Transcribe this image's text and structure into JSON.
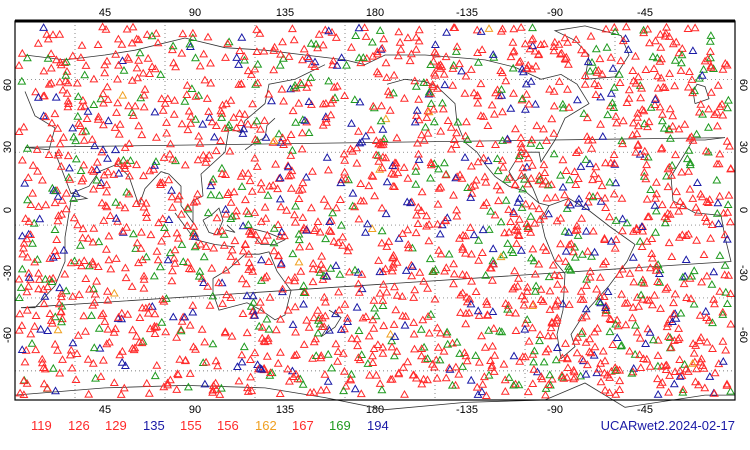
{
  "map": {
    "lon_ticks_top": [
      "45",
      "90",
      "135",
      "180",
      "-135",
      "-90",
      "-45"
    ],
    "lon_ticks_bottom": [
      "45",
      "90",
      "135",
      "180",
      "-135",
      "-90",
      "-45"
    ],
    "lat_ticks_left": [
      "60",
      "30",
      "0",
      "-30",
      "-60"
    ],
    "lat_ticks_right": [
      "60",
      "30",
      "0",
      "-30",
      "-60"
    ],
    "marker_symbol": "triangle-outline",
    "graticule": "dotted, every 45 degrees longitude and 30 degrees latitude",
    "projection": "equirectangular, 180 meridian centred"
  },
  "legend": {
    "items": [
      {
        "label": "119",
        "color": "#ff2a2a"
      },
      {
        "label": "126",
        "color": "#ff2a2a"
      },
      {
        "label": "129",
        "color": "#ff2a2a"
      },
      {
        "label": "135",
        "color": "#1a1aa6"
      },
      {
        "label": "155",
        "color": "#ff2a2a"
      },
      {
        "label": "156",
        "color": "#ff2a2a"
      },
      {
        "label": "162",
        "color": "#f0a020"
      },
      {
        "label": "167",
        "color": "#ff2a2a"
      },
      {
        "label": "169",
        "color": "#1f9a1f"
      },
      {
        "label": "194",
        "color": "#1a1aa6"
      }
    ]
  },
  "source_label": "UCARwet2.2024-02-17",
  "colors": {
    "red": "#ff2a2a",
    "green": "#1f9a1f",
    "blue": "#1a1aa6",
    "orange": "#f0a020",
    "coastline": "#333333",
    "frame": "#000000"
  }
}
